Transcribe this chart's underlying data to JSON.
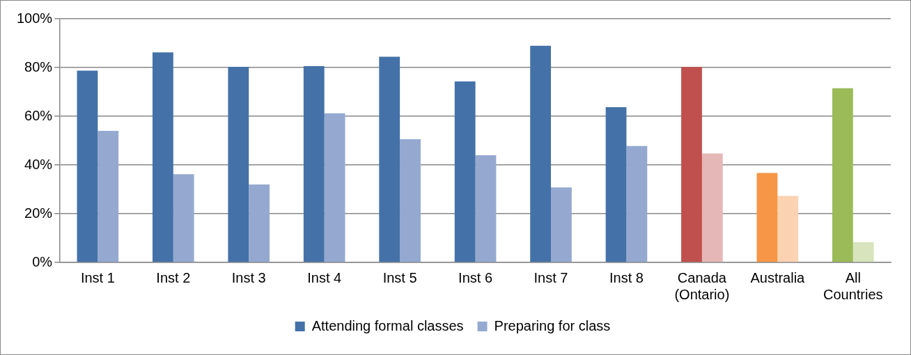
{
  "chart_data": {
    "type": "bar",
    "categories": [
      "Inst 1",
      "Inst 2",
      "Inst 3",
      "Inst 4",
      "Inst 5",
      "Inst 6",
      "Inst 7",
      "Inst 8",
      "Canada (Ontario)",
      "Australia",
      "All Countries"
    ],
    "series": [
      {
        "name": "Attending formal classes",
        "color": "#4472a8",
        "colors": [
          "#4472a8",
          "#4472a8",
          "#4472a8",
          "#4472a8",
          "#4472a8",
          "#4472a8",
          "#4472a8",
          "#4472a8",
          "#c0504d",
          "#f79646",
          "#9bbb59"
        ],
        "values": [
          78.7,
          86.2,
          80.3,
          80.6,
          84.4,
          74.3,
          88.9,
          63.7,
          80.2,
          36.7,
          71.5
        ]
      },
      {
        "name": "Preparing for class",
        "color": "#95a9d0",
        "colors": [
          "#95a9d0",
          "#95a9d0",
          "#95a9d0",
          "#95a9d0",
          "#95a9d0",
          "#95a9d0",
          "#95a9d0",
          "#95a9d0",
          "#e5b7b6",
          "#fbd3b2",
          "#d7e4bc"
        ],
        "values": [
          54.0,
          36.2,
          32.0,
          61.2,
          50.6,
          44.0,
          30.8,
          47.8,
          44.7,
          27.3,
          8.3
        ]
      }
    ],
    "ylim": [
      0,
      100
    ],
    "yticks": [
      {
        "value": 0,
        "label": "0%"
      },
      {
        "value": 20,
        "label": "20%"
      },
      {
        "value": 40,
        "label": "40%"
      },
      {
        "value": 60,
        "label": "60%"
      },
      {
        "value": 80,
        "label": "80%"
      },
      {
        "value": 100,
        "label": "100%"
      }
    ],
    "grid": "y",
    "legend": "bottom"
  }
}
